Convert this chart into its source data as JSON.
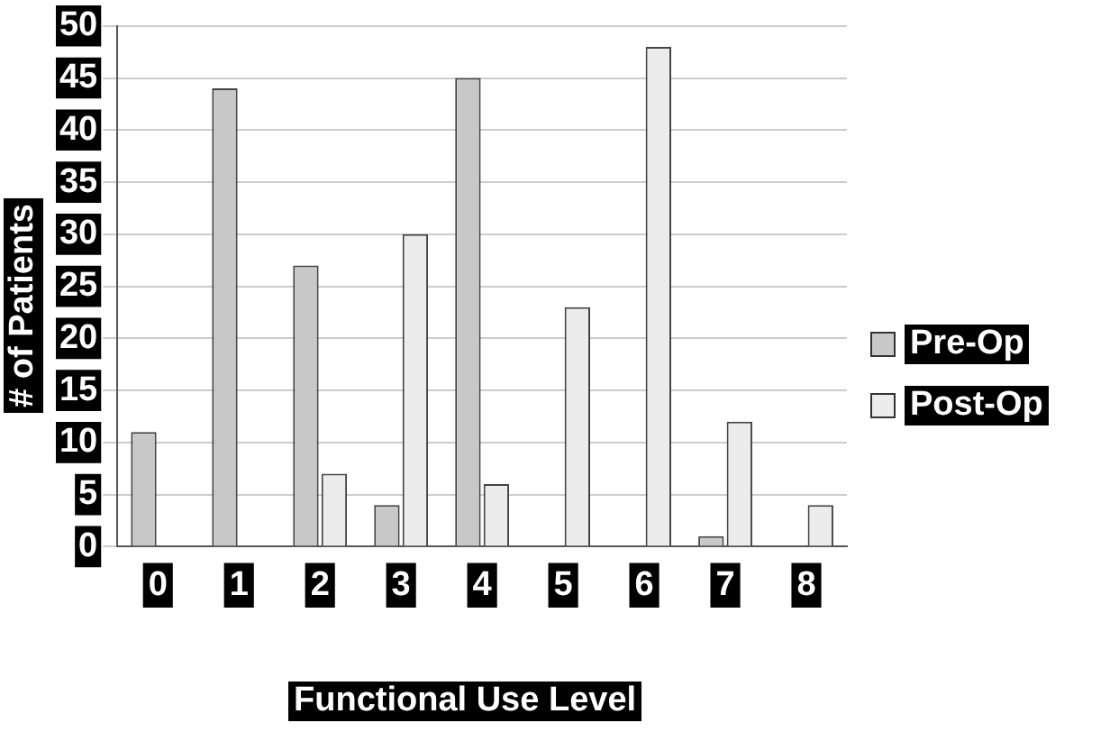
{
  "chart_data": {
    "type": "bar",
    "xlabel": "Functional Use Level",
    "ylabel": "# of Patients",
    "categories": [
      "0",
      "1",
      "2",
      "3",
      "4",
      "5",
      "6",
      "7",
      "8"
    ],
    "series": [
      {
        "name": "Pre-Op",
        "color": "#c8c8c8",
        "values": [
          11,
          44,
          27,
          4,
          45,
          0,
          0,
          1,
          0
        ]
      },
      {
        "name": "Post-Op",
        "color": "#ececec",
        "values": [
          0,
          0,
          7,
          30,
          6,
          23,
          48,
          12,
          4
        ]
      }
    ],
    "ylim": [
      0,
      50
    ],
    "yticks": [
      0,
      5,
      10,
      15,
      20,
      25,
      30,
      35,
      40,
      45,
      50
    ],
    "grid": "y",
    "legend": "right"
  }
}
